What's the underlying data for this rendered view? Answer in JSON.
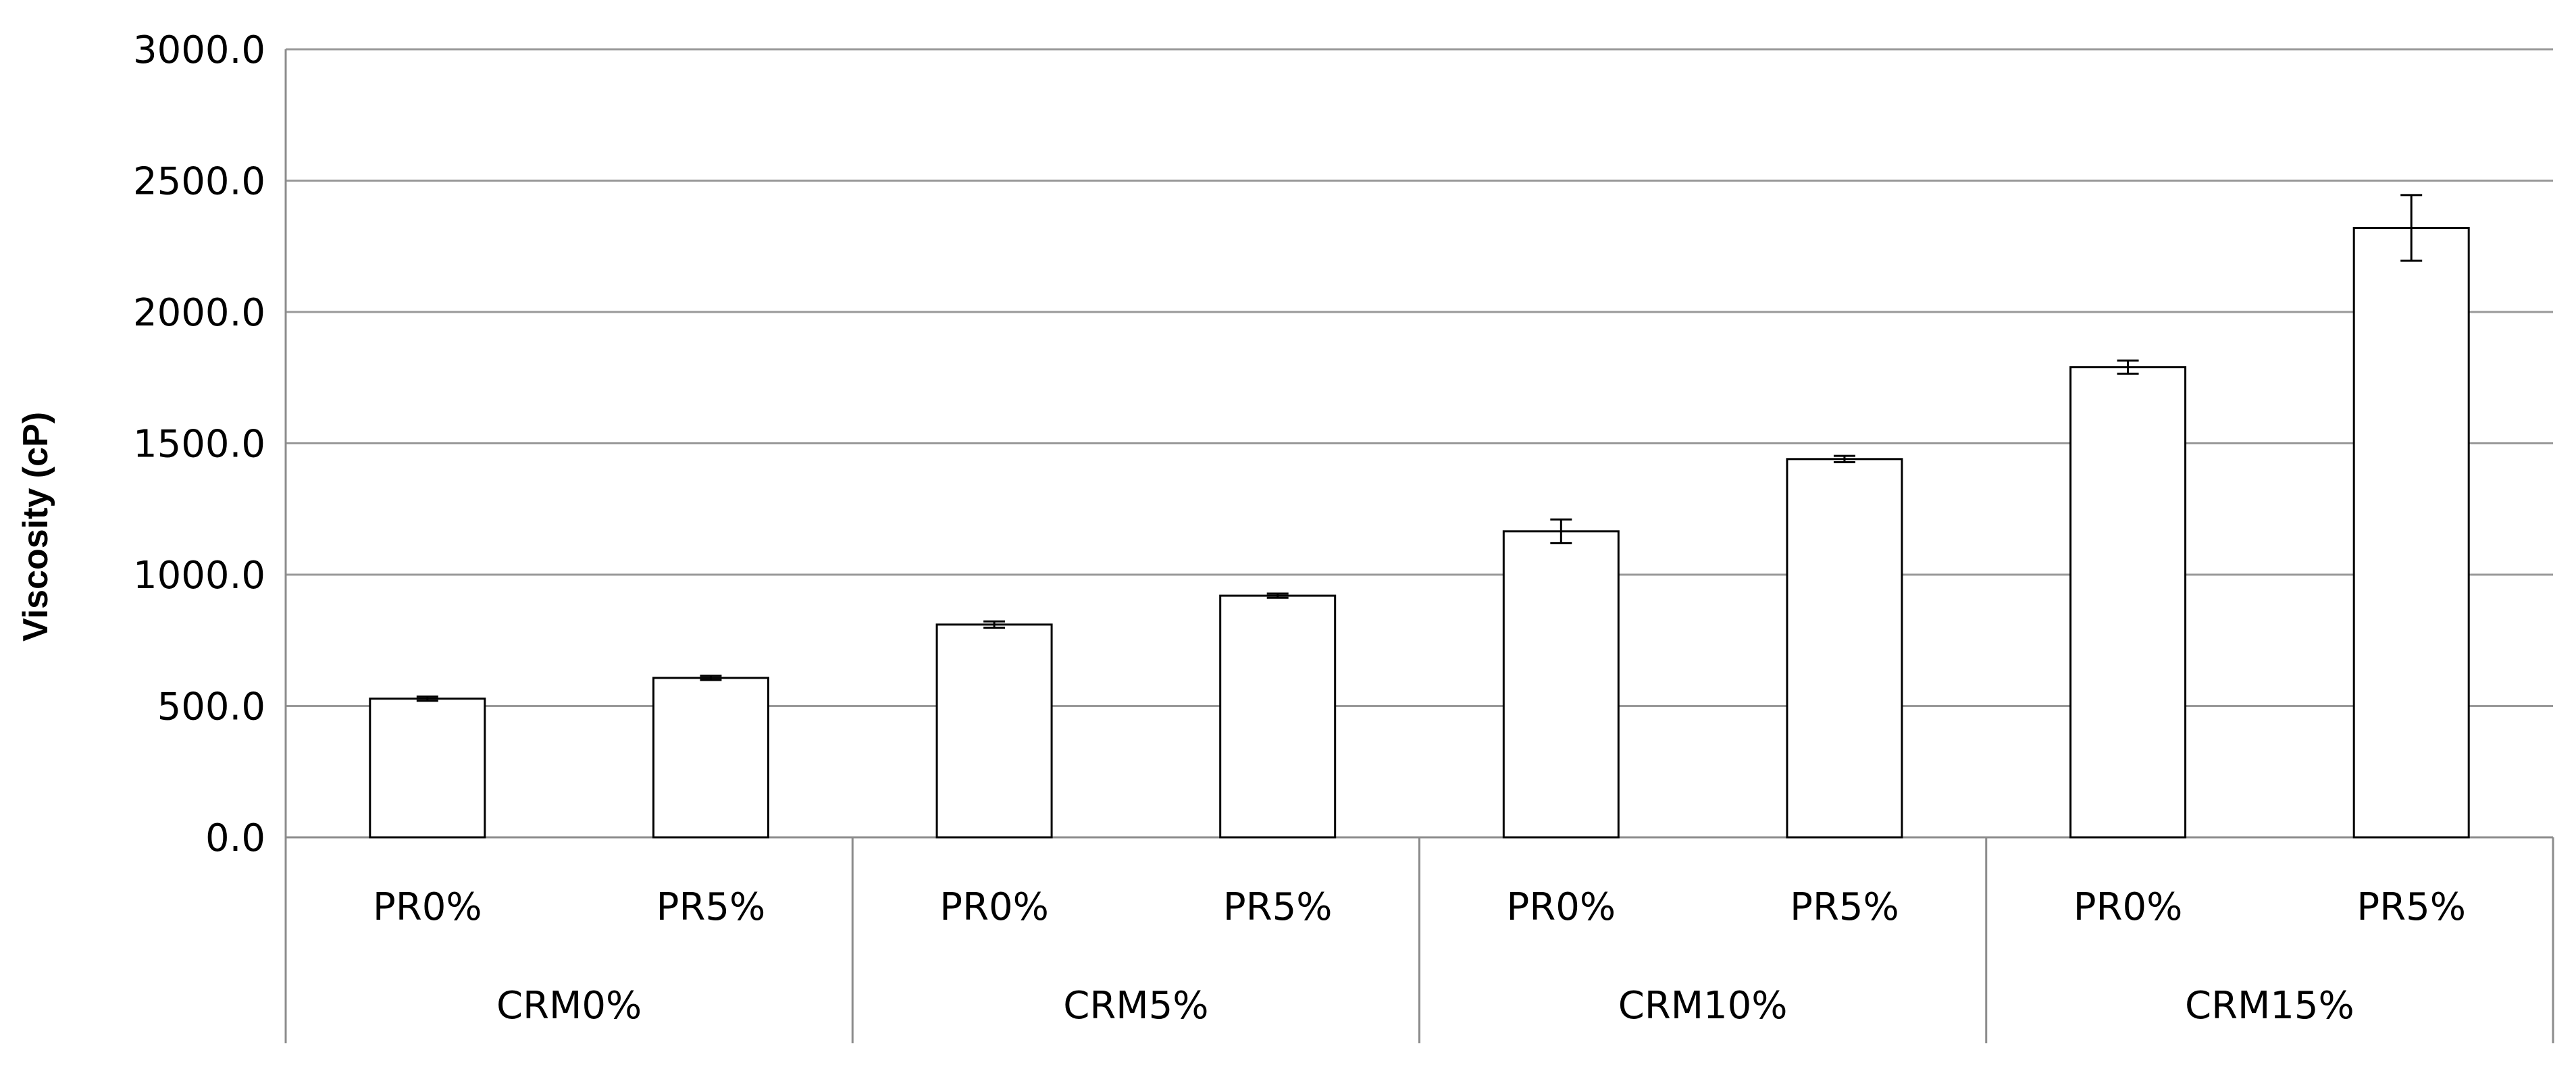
{
  "chart_data": {
    "type": "bar",
    "title": "",
    "xlabel": "",
    "ylabel": "Viscosity (cP)",
    "ylim": [
      0,
      3000
    ],
    "yticks": [
      "0.0",
      "500.0",
      "1000.0",
      "1500.0",
      "2000.0",
      "2500.0",
      "3000.0"
    ],
    "grid": true,
    "legend": "none",
    "groups": [
      "CRM0%",
      "CRM5%",
      "CRM10%",
      "CRM15%"
    ],
    "categories": [
      "PR0%",
      "PR5%",
      "PR0%",
      "PR5%",
      "PR0%",
      "PR5%",
      "PR0%",
      "PR5%"
    ],
    "values": [
      528,
      607,
      810,
      920,
      1165,
      1440,
      1790,
      2320
    ],
    "errors": [
      8,
      8,
      12,
      8,
      45,
      12,
      25,
      125
    ],
    "colors": {
      "bar_fill": "#ffffff",
      "bar_stroke": "#000000",
      "grid": "#999999",
      "axis": "#8c8c8c"
    }
  }
}
